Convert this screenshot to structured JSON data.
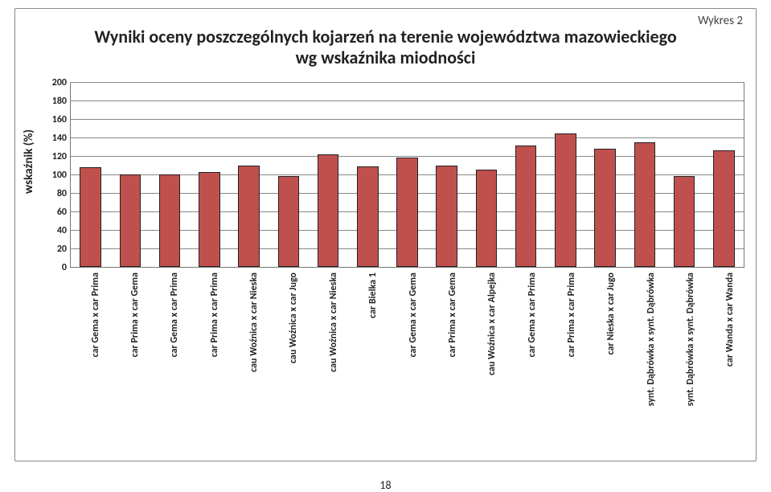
{
  "corner": "Wykres 2",
  "title_line1": "Wyniki oceny poszczególnych kojarzeń na terenie województwa mazowieckiego",
  "title_line2": "wg  wskaźnika miodności",
  "y_axis_label": "wskaźnik  (%)",
  "page_number": "18",
  "chart": {
    "type": "bar",
    "ylim_min": 0,
    "ylim_max": 200,
    "ytick_step": 20,
    "yticks": [
      0,
      20,
      40,
      60,
      80,
      100,
      120,
      140,
      160,
      180,
      200
    ],
    "grid_color": "#888888",
    "bar_color": "#c0504d",
    "bar_border": "#222222",
    "background_color": "#ffffff",
    "bar_width_ratio": 0.54,
    "title_fontsize": 22,
    "label_fontsize": 12,
    "categories": [
      "car Gema x car Prima",
      "car Prima x car Gema",
      "car Gema x car Prima",
      "car Prima x car Prima",
      "cau Woźnica x car Nieska",
      "cau Woźnica x car Jugo",
      "cau Woźnica x car Nieska",
      "car Bielka 1",
      "car Gema x car Gema",
      "car Prima x car Gema",
      "cau Woźnica x car Alpejka",
      "car Gema x car Prima",
      "car Prima x car Prima",
      "car Nieska x car Jugo",
      "synt. Dąbrówka x synt. Dąbrówka",
      "synt. Dąbrówka x synt. Dąbrówka",
      "car Wanda x car Wanda"
    ],
    "values": [
      108,
      100,
      100,
      103,
      110,
      98,
      122,
      109,
      118,
      110,
      105,
      131,
      144,
      128,
      135,
      98,
      126
    ]
  }
}
